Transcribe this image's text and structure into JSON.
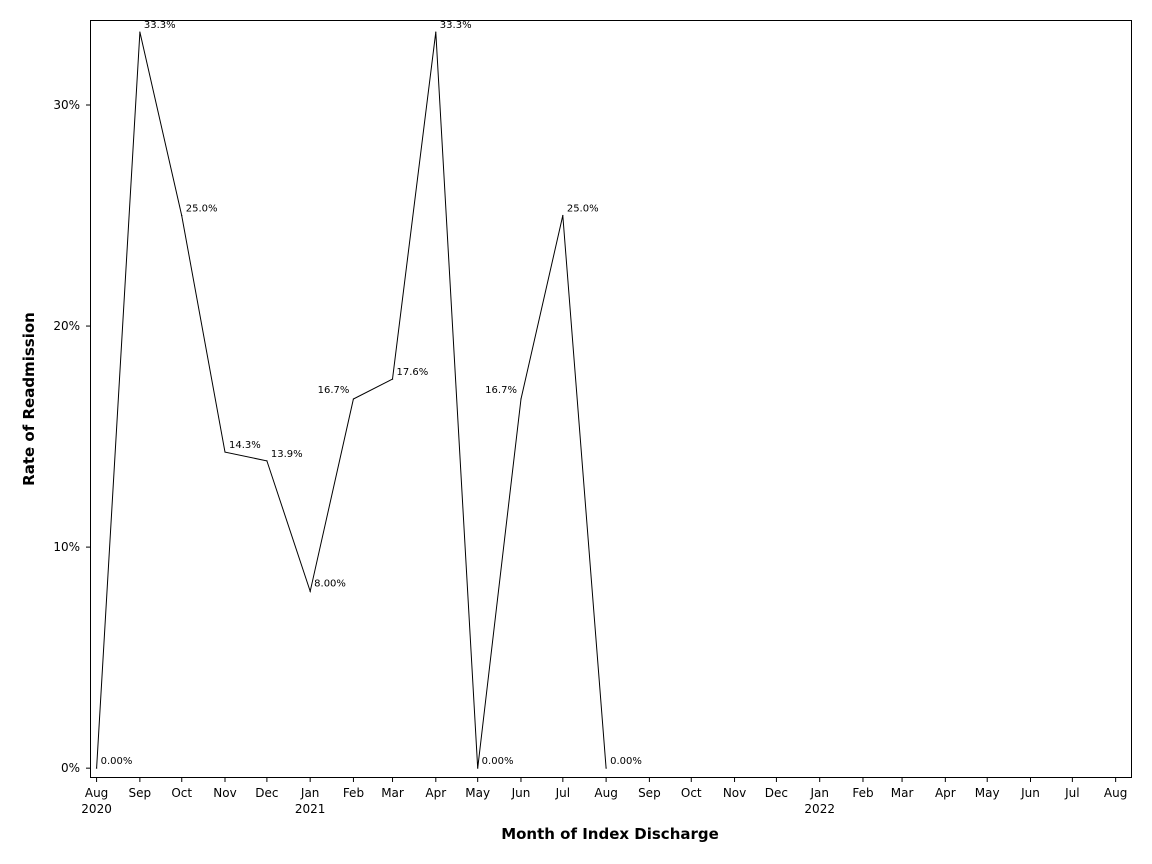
{
  "chart_data": {
    "type": "line",
    "title": "",
    "xlabel": "Month of Index Discharge",
    "ylabel": "Rate of Readmission",
    "x_ticks": [
      {
        "month": "Aug",
        "year": "2020"
      },
      {
        "month": "Sep",
        "year": ""
      },
      {
        "month": "Oct",
        "year": ""
      },
      {
        "month": "Nov",
        "year": ""
      },
      {
        "month": "Dec",
        "year": ""
      },
      {
        "month": "Jan",
        "year": "2021"
      },
      {
        "month": "Feb",
        "year": ""
      },
      {
        "month": "Mar",
        "year": ""
      },
      {
        "month": "Apr",
        "year": ""
      },
      {
        "month": "May",
        "year": ""
      },
      {
        "month": "Jun",
        "year": ""
      },
      {
        "month": "Jul",
        "year": ""
      },
      {
        "month": "Aug",
        "year": ""
      },
      {
        "month": "Sep",
        "year": ""
      },
      {
        "month": "Oct",
        "year": ""
      },
      {
        "month": "Nov",
        "year": ""
      },
      {
        "month": "Dec",
        "year": ""
      },
      {
        "month": "Jan",
        "year": "2022"
      },
      {
        "month": "Feb",
        "year": ""
      },
      {
        "month": "Mar",
        "year": ""
      },
      {
        "month": "Apr",
        "year": ""
      },
      {
        "month": "May",
        "year": ""
      },
      {
        "month": "Jun",
        "year": ""
      },
      {
        "month": "Jul",
        "year": ""
      },
      {
        "month": "Aug",
        "year": ""
      }
    ],
    "x_dates": [
      "2020-08-01",
      "2020-09-01",
      "2020-10-01",
      "2020-11-01",
      "2020-12-01",
      "2021-01-01",
      "2021-02-01",
      "2021-03-01",
      "2021-04-01",
      "2021-05-01",
      "2021-06-01",
      "2021-07-01",
      "2021-08-01",
      "2021-09-01",
      "2021-10-01",
      "2021-11-01",
      "2021-12-01",
      "2022-01-01",
      "2022-02-01",
      "2022-03-01",
      "2022-04-01",
      "2022-05-01",
      "2022-06-01",
      "2022-07-01",
      "2022-08-01"
    ],
    "x_range": [
      "2020-07-28",
      "2022-08-12"
    ],
    "y_ticks": [
      0,
      10,
      20,
      30
    ],
    "y_tick_labels": [
      "0%",
      "10%",
      "20%",
      "30%"
    ],
    "ylim": [
      -0.4,
      33.8
    ],
    "series": [
      {
        "x": [
          "2020-08-01",
          "2020-09-01",
          "2020-10-01",
          "2020-11-01",
          "2020-12-01",
          "2021-01-01",
          "2021-02-01",
          "2021-03-01",
          "2021-04-01",
          "2021-05-01",
          "2021-06-01",
          "2021-07-01",
          "2021-08-01"
        ],
        "values": [
          0,
          33.3,
          25.0,
          14.3,
          13.9,
          8.0,
          16.7,
          17.6,
          33.3,
          0,
          16.7,
          25.0,
          0
        ],
        "labels": [
          "0.00%",
          "33.3%",
          "25.0%",
          "14.3%",
          "13.9%",
          "8.00%",
          "16.7%",
          "17.6%",
          "33.3%",
          "0.00%",
          "16.7%",
          "25.0%",
          "0.00%"
        ]
      }
    ],
    "grid": false,
    "legend": "none",
    "line_color": "#000000"
  }
}
